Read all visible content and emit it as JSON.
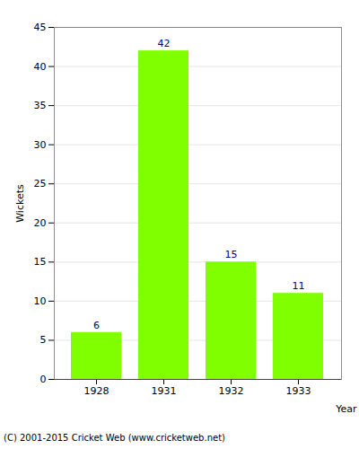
{
  "chart_data": {
    "type": "bar",
    "x_label": "Year",
    "y_label": "Wickets",
    "categories": [
      "1928",
      "1931",
      "1932",
      "1933"
    ],
    "values": [
      6,
      42,
      15,
      11
    ],
    "color": "#80ff00",
    "ylim": [
      0,
      45
    ],
    "yticks": [
      0,
      5,
      10,
      15,
      20,
      25,
      30,
      35,
      40,
      45
    ],
    "grid": true,
    "data_labels": true,
    "caption": "(C) 2001-2015 Cricket Web (www.cricketweb.net)"
  }
}
